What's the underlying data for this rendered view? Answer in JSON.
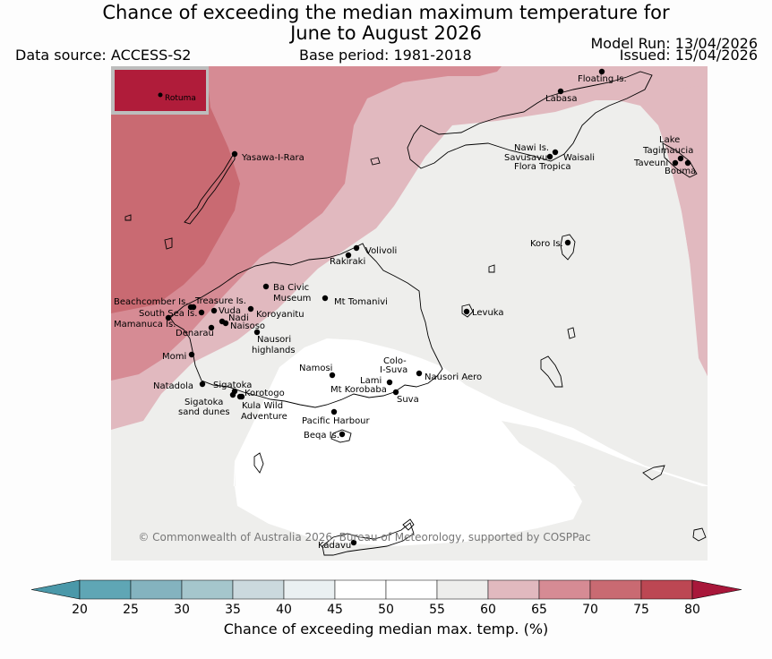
{
  "header": {
    "title_line1": "Chance of exceeding the median maximum temperature for",
    "title_line2": "June to August 2026",
    "data_source": "Data source: ACCESS-S2",
    "base_period": "Base period: 1981-2018",
    "model_run": "Model Run: 13/04/2026",
    "issued": "Issued: 15/04/2026"
  },
  "map": {
    "inset_label": "Rotuma",
    "copyright": "© Commonwealth of Australia 2026, Bureau of Meteorology, supported by COSPPac",
    "places": [
      "Floating Is.",
      "Labasa",
      "Nawi Is.",
      "Savusavu",
      "Waisali",
      "Flora Tropica",
      "Lake",
      "Tagimaucia",
      "Taveuni",
      "Bouma",
      "Yasawa-I-Rara",
      "Koro Is.",
      "Volivoli",
      "Rakiraki",
      "Ba Civic",
      "Museum",
      "Mt Tomanivi",
      "Levuka",
      "Beachcomber Is.",
      "Treasure Is.",
      "South Sea Is.",
      "Vuda",
      "Koroyanitu",
      "Nadi",
      "Naisoso",
      "Mamanuca Is.",
      "Denarau",
      "Nausori",
      "highlands",
      "Momi",
      "Namosi",
      "Colo-",
      "I-Suva",
      "Lami",
      "Nausori Aero",
      "Mt Korobaba",
      "Suva",
      "Natadola",
      "Sigatoka",
      "Korotogo",
      "Sigatoka",
      "sand dunes",
      "Kula Wild",
      "Adventure",
      "Pacific Harbour",
      "Beqa Is.",
      "Kadavu"
    ]
  },
  "colorbar": {
    "ticks": [
      "20",
      "25",
      "30",
      "35",
      "40",
      "45",
      "50",
      "55",
      "60",
      "65",
      "70",
      "75",
      "80"
    ],
    "colors": [
      "#5fa6b5",
      "#84b3bf",
      "#a5c6cc",
      "#cbd9de",
      "#eaf0f2",
      "#ffffff",
      "#ffffff",
      "#eeeeec",
      "#e1b9bf",
      "#d68b94",
      "#c96a72",
      "#bc4753"
    ],
    "under_color": "#4a98a9",
    "over_color": "#a8173a",
    "label": "Chance of exceeding median max. temp. (%)"
  }
}
